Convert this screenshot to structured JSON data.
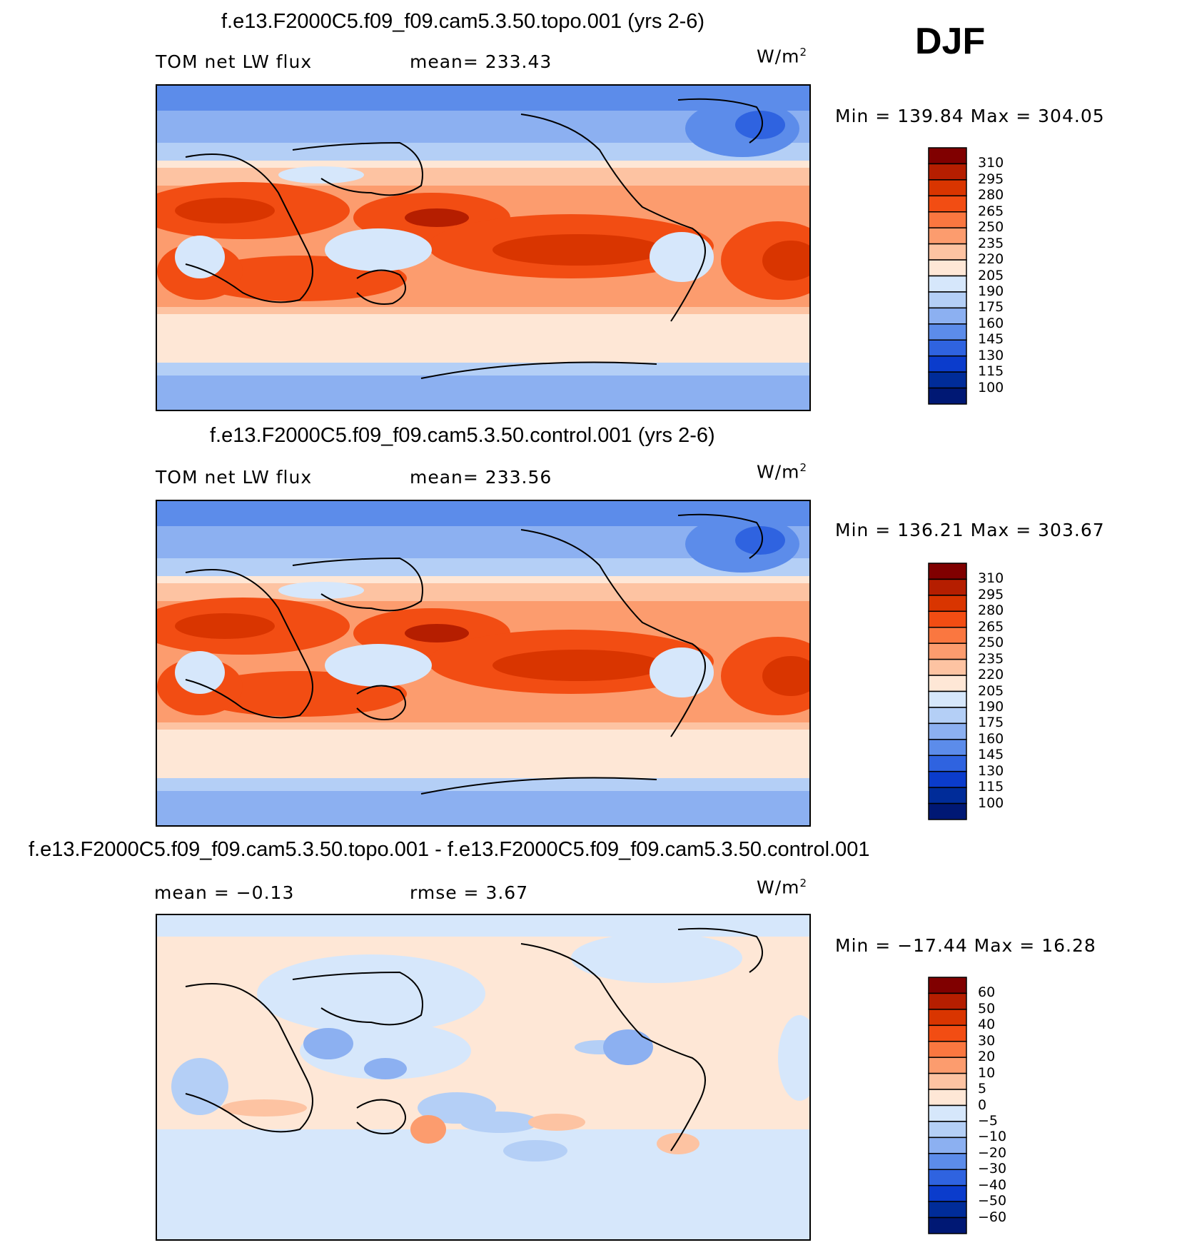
{
  "season": "DJF",
  "chart_data": [
    {
      "type": "heatmap",
      "title": "f.e13.F2000C5.f09_f09.cam5.3.50.topo.001 (yrs 2-6)",
      "left_label": "TOM net LW flux",
      "center_label": "mean=  233.43",
      "units_base": "W/m",
      "units_exp": "2",
      "min_max_label": "Min  =  139.84  Max  =  304.05",
      "variable": "TOM net LW flux",
      "mean": 233.43,
      "min": 139.84,
      "max": 304.05,
      "colorbar_levels": [
        "310",
        "295",
        "280",
        "265",
        "250",
        "235",
        "220",
        "205",
        "190",
        "175",
        "160",
        "145",
        "130",
        "115",
        "100"
      ],
      "colorbar_colors": [
        "#800000",
        "#b51e00",
        "#d93500",
        "#f24d13",
        "#fa7740",
        "#fc9c6e",
        "#fdc3a2",
        "#fee7d6",
        "#d6e7fb",
        "#b4cff6",
        "#8cb0f1",
        "#5c8cea",
        "#2f63e0",
        "#0b3ccc",
        "#002c99",
        "#001874"
      ]
    },
    {
      "type": "heatmap",
      "title": "f.e13.F2000C5.f09_f09.cam5.3.50.control.001 (yrs 2-6)",
      "left_label": "TOM net LW flux",
      "center_label": "mean=  233.56",
      "units_base": "W/m",
      "units_exp": "2",
      "min_max_label": "Min  =  136.21  Max  =  303.67",
      "variable": "TOM net LW flux",
      "mean": 233.56,
      "min": 136.21,
      "max": 303.67,
      "colorbar_levels": [
        "310",
        "295",
        "280",
        "265",
        "250",
        "235",
        "220",
        "205",
        "190",
        "175",
        "160",
        "145",
        "130",
        "115",
        "100"
      ],
      "colorbar_colors": [
        "#800000",
        "#b51e00",
        "#d93500",
        "#f24d13",
        "#fa7740",
        "#fc9c6e",
        "#fdc3a2",
        "#fee7d6",
        "#d6e7fb",
        "#b4cff6",
        "#8cb0f1",
        "#5c8cea",
        "#2f63e0",
        "#0b3ccc",
        "#002c99",
        "#001874"
      ]
    },
    {
      "type": "heatmap",
      "title": "f.e13.F2000C5.f09_f09.cam5.3.50.topo.001 - f.e13.F2000C5.f09_f09.cam5.3.50.control.001",
      "left_label": "mean =    −0.13",
      "center_label": "rmse =     3.67",
      "units_base": "W/m",
      "units_exp": "2",
      "min_max_label": "Min  =  −17.44  Max  =    16.28",
      "mean": -0.13,
      "rmse": 3.67,
      "min": -17.44,
      "max": 16.28,
      "colorbar_levels": [
        "60",
        "50",
        "40",
        "30",
        "20",
        "10",
        "5",
        "0",
        "−5",
        "−10",
        "−20",
        "−30",
        "−40",
        "−50",
        "−60"
      ],
      "colorbar_colors": [
        "#800000",
        "#b51e00",
        "#d93500",
        "#f24d13",
        "#fa7740",
        "#fc9c6e",
        "#fdc3a2",
        "#fee7d6",
        "#d6e7fb",
        "#b4cff6",
        "#8cb0f1",
        "#5c8cea",
        "#2f63e0",
        "#0b3ccc",
        "#002c99",
        "#001874"
      ]
    }
  ]
}
